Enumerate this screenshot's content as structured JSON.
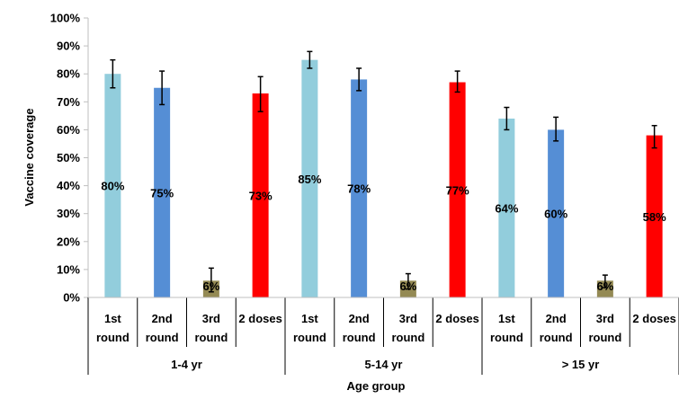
{
  "chart_data": {
    "type": "bar",
    "ylabel": "Vaccine coverage",
    "xlabel": "Age group",
    "ylim": [
      0,
      100
    ],
    "y_ticks": [
      "0%",
      "10%",
      "20%",
      "30%",
      "40%",
      "50%",
      "60%",
      "70%",
      "80%",
      "90%",
      "100%"
    ],
    "grid": false,
    "legend": "none",
    "groups": [
      {
        "label": "1-4 yr",
        "bars": [
          {
            "line1": "1st",
            "line2": "round",
            "value": 80,
            "label": "80%",
            "err_low": 75,
            "err_high": 85,
            "color": "#92CDDC"
          },
          {
            "line1": "2nd",
            "line2": "round",
            "value": 75,
            "label": "75%",
            "err_low": 69,
            "err_high": 81,
            "color": "#558ED5"
          },
          {
            "line1": "3rd",
            "line2": "round",
            "value": 6,
            "label": "6%",
            "err_low": 2,
            "err_high": 10.5,
            "color": "#948A54"
          },
          {
            "line1": "2 doses",
            "line2": "",
            "value": 73,
            "label": "73%",
            "err_low": 66.5,
            "err_high": 79,
            "color": "#FF0000"
          }
        ]
      },
      {
        "label": "5-14 yr",
        "bars": [
          {
            "line1": "1st",
            "line2": "round",
            "value": 85,
            "label": "85%",
            "err_low": 82,
            "err_high": 88,
            "color": "#92CDDC"
          },
          {
            "line1": "2nd",
            "line2": "round",
            "value": 78,
            "label": "78%",
            "err_low": 74,
            "err_high": 82,
            "color": "#558ED5"
          },
          {
            "line1": "3rd",
            "line2": "round",
            "value": 6,
            "label": "6%",
            "err_low": 3,
            "err_high": 8.5,
            "color": "#948A54"
          },
          {
            "line1": "2 doses",
            "line2": "",
            "value": 77,
            "label": "77%",
            "err_low": 73.5,
            "err_high": 81,
            "color": "#FF0000"
          }
        ]
      },
      {
        "label": "> 15 yr",
        "bars": [
          {
            "line1": "1st",
            "line2": "round",
            "value": 64,
            "label": "64%",
            "err_low": 60,
            "err_high": 68,
            "color": "#92CDDC"
          },
          {
            "line1": "2nd",
            "line2": "round",
            "value": 60,
            "label": "60%",
            "err_low": 56,
            "err_high": 64.5,
            "color": "#558ED5"
          },
          {
            "line1": "3rd",
            "line2": "round",
            "value": 6,
            "label": "6%",
            "err_low": 3.5,
            "err_high": 8,
            "color": "#948A54"
          },
          {
            "line1": "2 doses",
            "line2": "",
            "value": 58,
            "label": "58%",
            "err_low": 53.5,
            "err_high": 61.5,
            "color": "#FF0000"
          }
        ]
      }
    ]
  }
}
